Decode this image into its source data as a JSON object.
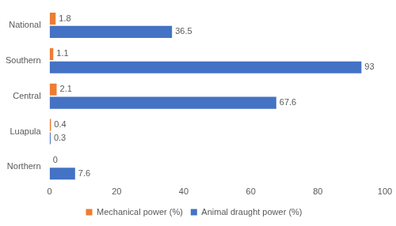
{
  "chart_data": {
    "type": "bar",
    "orientation": "horizontal",
    "categories": [
      "National",
      "Southern",
      "Central",
      "Luapula",
      "Northern"
    ],
    "series": [
      {
        "name": "Mechanical power (%)",
        "color": "#ed7d31",
        "values": [
          1.8,
          1.1,
          2.1,
          0.4,
          0
        ]
      },
      {
        "name": "Animal draught power (%)",
        "color": "#4472c4",
        "values": [
          36.5,
          93,
          67.6,
          0.3,
          7.6
        ]
      }
    ],
    "xlim": [
      0,
      100
    ],
    "xticks": [
      0,
      20,
      40,
      60,
      80,
      100
    ],
    "grid": false,
    "legend": "bottom",
    "data_labels": true
  }
}
